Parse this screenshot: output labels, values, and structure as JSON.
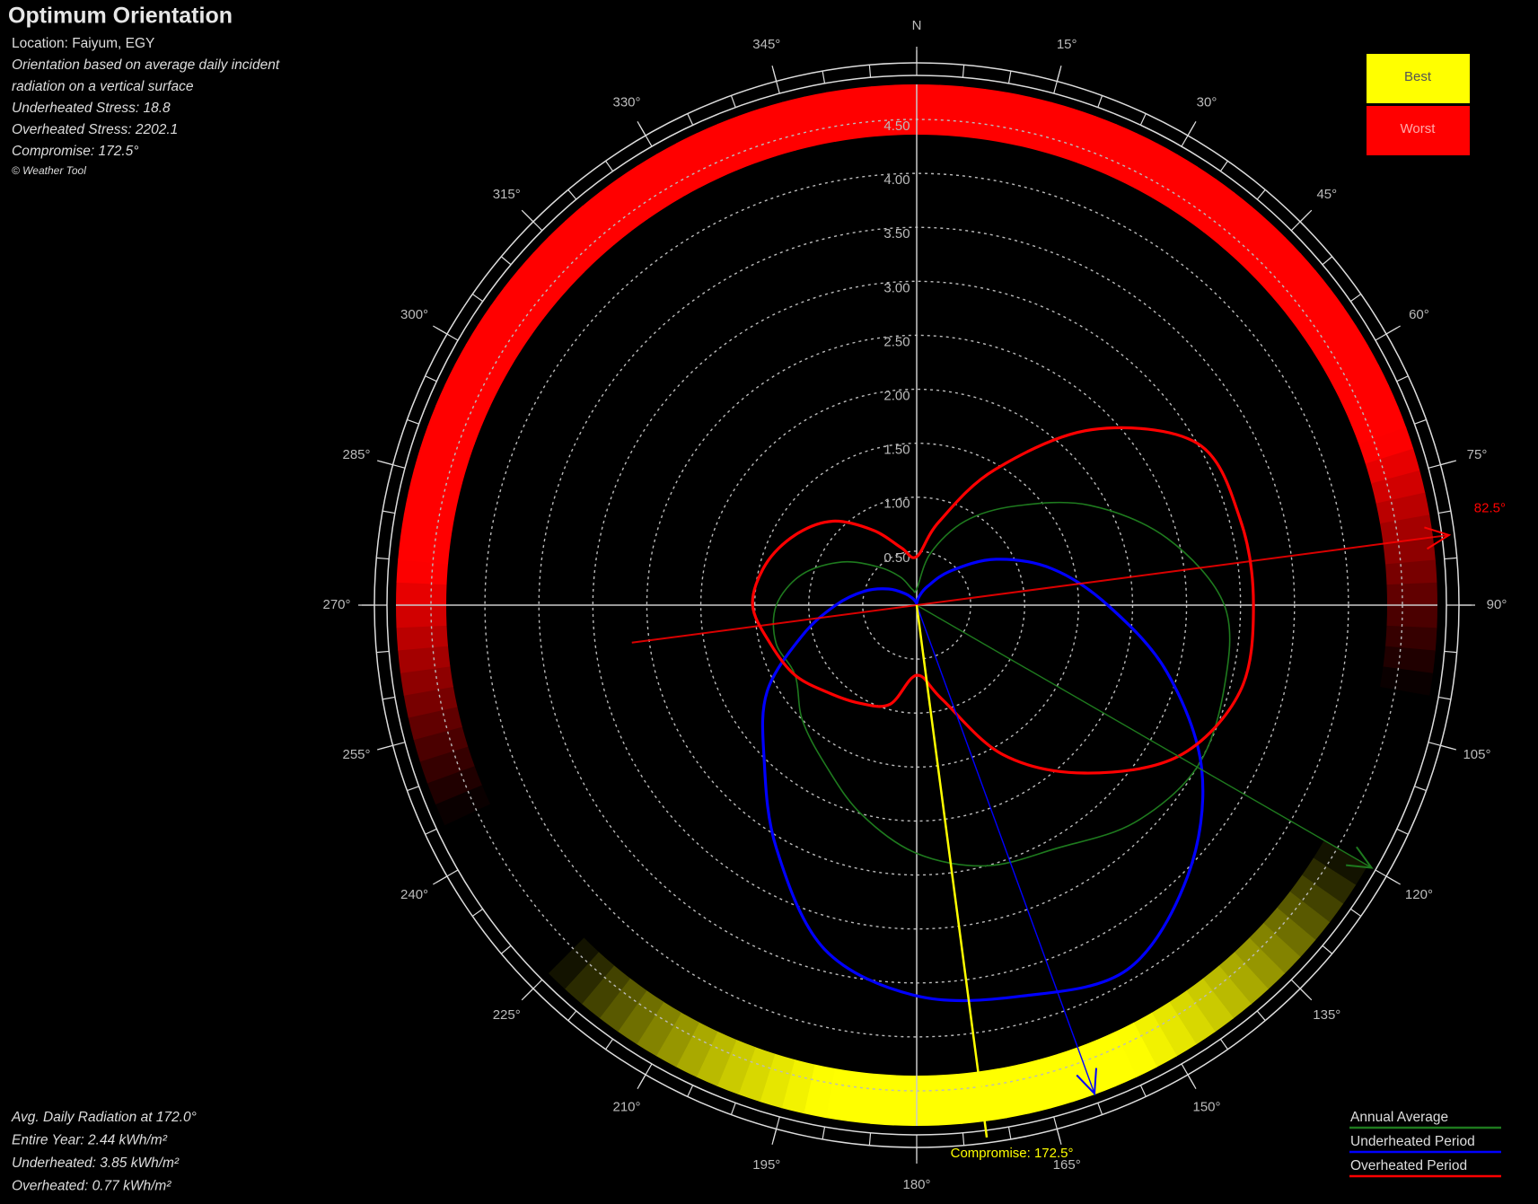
{
  "chart_data": {
    "type": "polar",
    "title": "Optimum Orientation",
    "info": [
      "Location: Faiyum, EGY",
      "Orientation based on average daily incident",
      "radiation on a vertical surface",
      "Underheated Stress: 18.8",
      "Overheated Stress: 2202.1",
      "Compromise: 172.5°",
      "© Weather Tool"
    ],
    "summary": [
      "Avg. Daily Radiation at 172.0°",
      "Entire Year: 2.44 kWh/m²",
      "Underheated: 3.85 kWh/m²",
      "Overheated: 0.77 kWh/m²"
    ],
    "rating_legend": [
      {
        "label": "Best",
        "color": "#ffff00"
      },
      {
        "label": "Worst",
        "color": "#ff0000"
      }
    ],
    "rlim": [
      0,
      4.5
    ],
    "rticks": [
      {
        "value": 0.5,
        "label": "0.50"
      },
      {
        "value": 1,
        "label": "1.00"
      },
      {
        "value": 1.5,
        "label": "1.50"
      },
      {
        "value": 2,
        "label": "2.00"
      },
      {
        "value": 2.5,
        "label": "2.50"
      },
      {
        "value": 3,
        "label": "3.00"
      },
      {
        "value": 3.5,
        "label": "3.50"
      },
      {
        "value": 4,
        "label": "4.00"
      },
      {
        "value": 4.5,
        "label": "4.50"
      }
    ],
    "angle_ticks": [
      {
        "value": 0,
        "label": "N"
      },
      {
        "value": 15,
        "label": "15°"
      },
      {
        "value": 30,
        "label": "30°"
      },
      {
        "value": 45,
        "label": "45°"
      },
      {
        "value": 60,
        "label": "60°"
      },
      {
        "value": 75,
        "label": "75°"
      },
      {
        "value": 90,
        "label": "90°"
      },
      {
        "value": 105,
        "label": "105°"
      },
      {
        "value": 120,
        "label": "120°"
      },
      {
        "value": 135,
        "label": "135°"
      },
      {
        "value": 150,
        "label": "150°"
      },
      {
        "value": 165,
        "label": "165°"
      },
      {
        "value": 180,
        "label": "180°"
      },
      {
        "value": 195,
        "label": "195°"
      },
      {
        "value": 210,
        "label": "210°"
      },
      {
        "value": 225,
        "label": "225°"
      },
      {
        "value": 240,
        "label": "240°"
      },
      {
        "value": 255,
        "label": "255°"
      },
      {
        "value": 270,
        "label": "270°"
      },
      {
        "value": 285,
        "label": "285°"
      },
      {
        "value": 300,
        "label": "300°"
      },
      {
        "value": 315,
        "label": "315°"
      },
      {
        "value": 330,
        "label": "330°"
      },
      {
        "value": 345,
        "label": "345°"
      }
    ],
    "theta": [
      0,
      15,
      30,
      45,
      60,
      75,
      90,
      105,
      120,
      135,
      150,
      165,
      180,
      195,
      210,
      225,
      240,
      255,
      270,
      285,
      300,
      315,
      330,
      345
    ],
    "series": [
      {
        "name": "Annual Average",
        "color": "#1e7a1e",
        "values": [
          0.15,
          0.5,
          0.9,
          1.3,
          1.85,
          2.4,
          2.85,
          2.95,
          3.0,
          2.85,
          2.6,
          2.5,
          2.3,
          2.0,
          1.7,
          1.5,
          1.3,
          1.35,
          1.3,
          1.1,
          0.8,
          0.5,
          0.3,
          0.15
        ],
        "direction": 120
      },
      {
        "name": "Underheated Period",
        "color": "#0000ff",
        "values": [
          0.02,
          0.08,
          0.2,
          0.45,
          0.85,
          1.3,
          1.77,
          2.4,
          3.05,
          3.55,
          3.9,
          3.75,
          3.62,
          3.3,
          2.6,
          2.0,
          1.6,
          1.1,
          0.75,
          0.5,
          0.3,
          0.15,
          0.07,
          0.03
        ],
        "direction": 160
      },
      {
        "name": "Overheated Period",
        "color": "#ff0000",
        "values": [
          0.45,
          0.8,
          1.45,
          2.3,
          3.0,
          3.1,
          3.12,
          3.1,
          2.8,
          2.2,
          1.6,
          0.9,
          0.65,
          0.95,
          1.05,
          1.15,
          1.3,
          1.4,
          1.52,
          1.45,
          1.3,
          1.1,
          0.8,
          0.55
        ],
        "direction": 82.5,
        "direction_label": "82.5°"
      }
    ],
    "compromise": {
      "angle": 172.5,
      "label": "Compromise: 172.5°",
      "color": "#ffff00"
    }
  }
}
